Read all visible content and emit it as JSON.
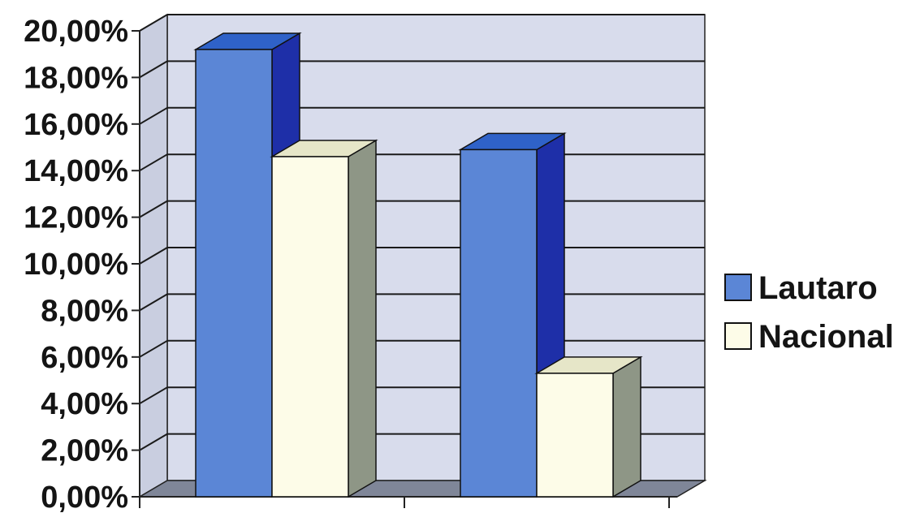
{
  "chart_data": {
    "type": "bar",
    "categories": [
      "",
      ""
    ],
    "series": [
      {
        "name": "Lautaro",
        "values": [
          19.2,
          14.9
        ]
      },
      {
        "name": "Nacional",
        "values": [
          14.6,
          5.3
        ]
      }
    ],
    "ylim": [
      0,
      20
    ],
    "yticks": [
      "0,00%",
      "2,00%",
      "4,00%",
      "6,00%",
      "8,00%",
      "10,00%",
      "12,00%",
      "14,00%",
      "16,00%",
      "18,00%",
      "20,00%"
    ],
    "grid": true,
    "legend_position": "right",
    "style": "3d",
    "colors": {
      "Lautaro": {
        "front": "#5b86d6",
        "top": "#2f62c8",
        "side": "#1e2fa8"
      },
      "Nacional": {
        "front": "#fdfce8",
        "top": "#e6e6c8",
        "side": "#8e9686"
      },
      "wall": "#d8dcec",
      "floor": "#7f8698"
    }
  }
}
